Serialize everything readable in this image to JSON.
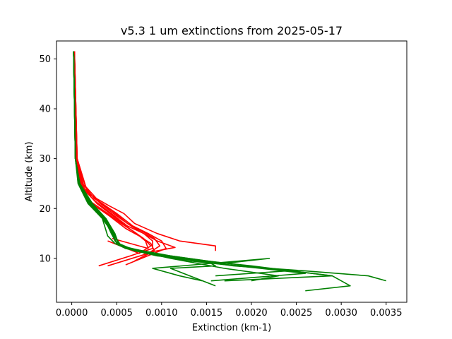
{
  "chart_data": {
    "type": "line",
    "title": "v5.3 1 um extinctions from 2025-05-17",
    "xlabel": "Extinction (km-1)",
    "ylabel": "Altitude (km)",
    "xlim": [
      -0.00017,
      0.00373
    ],
    "ylim": [
      1.2,
      53.6
    ],
    "x_ticks": [
      0.0,
      0.0005,
      0.001,
      0.0015,
      0.002,
      0.0025,
      0.003,
      0.0035
    ],
    "x_tick_labels": [
      "0.0000",
      "0.0005",
      "0.0010",
      "0.0015",
      "0.0020",
      "0.0025",
      "0.0030",
      "0.0035"
    ],
    "y_ticks": [
      10,
      20,
      30,
      40,
      50
    ],
    "y_tick_labels": [
      "10",
      "20",
      "30",
      "40",
      "50"
    ],
    "grid": false,
    "colors": {
      "red_profiles": "#ff0000",
      "green_profiles": "#008000",
      "frame": "#000000"
    },
    "series": [
      {
        "color": "#ff0000",
        "x": [
          3e-05,
          5e-05,
          0.00012,
          0.00025,
          0.00045,
          0.00062,
          0.00078,
          0.00092,
          0.00098,
          0.00085,
          0.0004
        ],
        "y": [
          51.5,
          30,
          25,
          22,
          19.5,
          17,
          15.5,
          14,
          12.5,
          11,
          8.5
        ]
      },
      {
        "color": "#ff0000",
        "x": [
          3e-05,
          6e-05,
          0.00015,
          0.0003,
          0.0005,
          0.00068,
          0.00085,
          0.001,
          0.00105,
          0.0006
        ],
        "y": [
          51.5,
          30,
          24.5,
          21.5,
          19,
          16.5,
          15,
          13.5,
          12,
          8.7
        ]
      },
      {
        "color": "#ff0000",
        "x": [
          3e-05,
          5e-05,
          0.0001,
          0.00022,
          0.00042,
          0.0006,
          0.00075,
          0.00088,
          0.00092,
          0.0007
        ],
        "y": [
          51.5,
          30,
          24,
          21,
          18.5,
          16,
          14.5,
          13,
          11.5,
          9.5
        ]
      },
      {
        "color": "#ff0000",
        "x": [
          3e-05,
          6e-05,
          0.00018,
          0.00042,
          0.00058,
          0.0007,
          0.00095,
          0.0012,
          0.0016,
          0.0016
        ],
        "y": [
          51.5,
          30,
          23,
          20.5,
          19,
          17,
          15,
          13.5,
          12.5,
          11.5
        ]
      },
      {
        "color": "#ff0000",
        "x": [
          3e-05,
          5e-05,
          0.00011,
          0.0002,
          0.0004,
          0.00055,
          0.00068,
          0.0008,
          0.00088,
          0.00075,
          0.0004
        ],
        "y": [
          51.5,
          30,
          24,
          21.5,
          19,
          17,
          15.5,
          14,
          12.5,
          11,
          13.5
        ]
      },
      {
        "color": "#ff0000",
        "x": [
          3e-05,
          5e-05,
          0.00012,
          0.00026,
          0.00044,
          0.00062,
          0.0008,
          0.0009,
          0.0009,
          0.00065,
          0.0003
        ],
        "y": [
          51.5,
          30,
          24,
          21.5,
          19,
          16.5,
          15,
          13.5,
          12,
          10.5,
          8.5
        ]
      },
      {
        "color": "#ff0000",
        "x": [
          3e-05,
          6e-05,
          0.00014,
          0.00032,
          0.0005,
          0.00066,
          0.0008,
          0.00095,
          0.00115,
          0.0008
        ],
        "y": [
          51.5,
          30,
          24,
          21,
          18.5,
          16.5,
          15,
          13.5,
          12.2,
          11
        ]
      },
      {
        "color": "#ff0000",
        "x": [
          3e-05,
          5e-05,
          0.00013,
          0.00028,
          0.00046,
          0.0006,
          0.00072,
          0.00082,
          0.00085,
          0.00045
        ],
        "y": [
          51.5,
          30,
          24,
          21,
          18.5,
          16.5,
          15,
          13.5,
          12,
          14
        ]
      },
      {
        "color": "#008000",
        "x": [
          2e-05,
          4e-05,
          8e-05,
          0.0002,
          0.00035,
          0.00045,
          0.0005,
          0.0006,
          0.001,
          0.0018,
          0.0026,
          0.0033,
          0.0035
        ],
        "y": [
          51.5,
          30,
          25,
          21,
          18,
          15.5,
          13,
          12,
          10.5,
          8.5,
          7.5,
          6.5,
          5.5
        ]
      },
      {
        "color": "#008000",
        "x": [
          2e-05,
          4e-05,
          9e-05,
          0.00022,
          0.00038,
          0.00048,
          0.00052,
          0.0007,
          0.0012,
          0.002,
          0.0029,
          0.0031,
          0.0026
        ],
        "y": [
          51.5,
          30,
          25,
          21,
          18,
          15,
          13,
          11.5,
          10,
          8.5,
          6.5,
          4.5,
          3.5
        ]
      },
      {
        "color": "#008000",
        "x": [
          2e-05,
          4e-05,
          7e-05,
          0.00018,
          0.00034,
          0.00044,
          0.00048,
          0.0006,
          0.0011,
          0.0017,
          0.0023,
          0.002
        ],
        "y": [
          51.5,
          30,
          25,
          21,
          18,
          15.5,
          13.5,
          12,
          10,
          8,
          6.5,
          5.5
        ]
      },
      {
        "color": "#008000",
        "x": [
          2e-05,
          4e-05,
          8e-05,
          0.00021,
          0.00036,
          0.00046,
          0.00055,
          0.0009,
          0.0015,
          0.0022,
          0.0029,
          0.0017
        ],
        "y": [
          51.5,
          30,
          25,
          21,
          18,
          15,
          12.5,
          11,
          9.5,
          8,
          6.5,
          5.5
        ]
      },
      {
        "color": "#008000",
        "x": [
          2e-05,
          4e-05,
          8e-05,
          0.0002,
          0.00036,
          0.00044,
          0.0005,
          0.0007,
          0.0013,
          0.0021,
          0.0026,
          0.00155
        ],
        "y": [
          51.5,
          30,
          25,
          21,
          18,
          15,
          13,
          11.5,
          9.5,
          8,
          7,
          5.5
        ]
      },
      {
        "color": "#008000",
        "x": [
          2e-05,
          4e-05,
          9e-05,
          0.00023,
          0.00038,
          0.00046,
          0.00052,
          0.00065,
          0.0011,
          0.0017,
          0.0022,
          0.0009,
          0.0012,
          0.00145
        ],
        "y": [
          51.5,
          30,
          25,
          21,
          18,
          15.5,
          13,
          12,
          10.5,
          9,
          10,
          8,
          6.5,
          5.5
        ]
      },
      {
        "color": "#008000",
        "x": [
          2e-05,
          4e-05,
          8e-05,
          0.00019,
          0.00034,
          0.0004,
          0.00048,
          0.0006,
          0.00095,
          0.0015,
          0.0016,
          0.0011,
          0.0016
        ],
        "y": [
          51.5,
          30,
          25,
          21,
          18,
          14.5,
          13,
          12,
          10.5,
          9.5,
          8.5,
          8,
          4.5
        ]
      },
      {
        "color": "#008000",
        "x": [
          2e-05,
          4e-05,
          8e-05,
          0.0002,
          0.00037,
          0.00046,
          0.00052,
          0.00065,
          0.001,
          0.0016,
          0.0024,
          0.0016
        ],
        "y": [
          51.5,
          30,
          25,
          21,
          18,
          15.5,
          13,
          12,
          10.5,
          9,
          7.5,
          6.5
        ]
      }
    ]
  }
}
